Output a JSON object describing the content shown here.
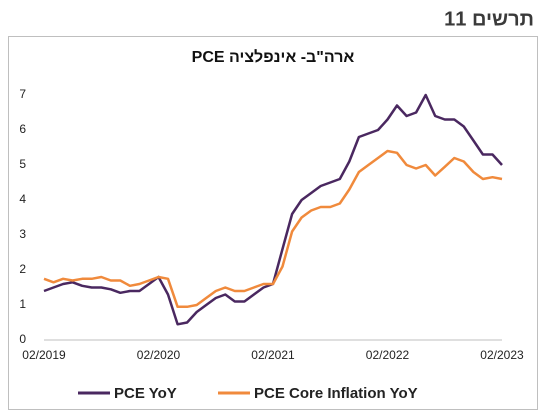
{
  "header": {
    "label": "תרשים 11"
  },
  "chart_data": {
    "type": "line",
    "title": "ארה\"ב- אינפלציה PCE",
    "categories": [
      "02/2019",
      null,
      null,
      null,
      null,
      null,
      null,
      null,
      null,
      null,
      null,
      null,
      "02/2020",
      null,
      null,
      null,
      null,
      null,
      null,
      null,
      null,
      null,
      null,
      null,
      "02/2021",
      null,
      null,
      null,
      null,
      null,
      null,
      null,
      null,
      null,
      null,
      null,
      "02/2022",
      null,
      null,
      null,
      null,
      null,
      null,
      null,
      null,
      null,
      null,
      null,
      "02/2023"
    ],
    "series": [
      {
        "name": "PCE YoY",
        "color": "#4a2860",
        "values": [
          1.4,
          1.5,
          1.6,
          1.65,
          1.55,
          1.5,
          1.5,
          1.45,
          1.35,
          1.4,
          1.4,
          1.6,
          1.8,
          1.3,
          0.45,
          0.5,
          0.8,
          1.0,
          1.2,
          1.3,
          1.1,
          1.1,
          1.3,
          1.5,
          1.6,
          2.6,
          3.6,
          4.0,
          4.2,
          4.4,
          4.5,
          4.6,
          5.1,
          5.8,
          5.9,
          6.0,
          6.3,
          6.7,
          6.4,
          6.5,
          7.0,
          6.4,
          6.3,
          6.3,
          6.1,
          5.7,
          5.3,
          5.3,
          5.0
        ]
      },
      {
        "name": "PCE Core Inflation YoY",
        "color": "#f08a3c",
        "values": [
          1.75,
          1.65,
          1.75,
          1.7,
          1.75,
          1.75,
          1.8,
          1.7,
          1.7,
          1.55,
          1.6,
          1.7,
          1.8,
          1.75,
          0.95,
          0.95,
          1.0,
          1.2,
          1.4,
          1.5,
          1.4,
          1.4,
          1.5,
          1.6,
          1.6,
          2.1,
          3.1,
          3.5,
          3.7,
          3.8,
          3.8,
          3.9,
          4.3,
          4.8,
          5.0,
          5.2,
          5.4,
          5.35,
          5.0,
          4.9,
          5.0,
          4.7,
          4.95,
          5.2,
          5.1,
          4.8,
          4.6,
          4.65,
          4.6
        ]
      }
    ],
    "ylim": [
      0,
      7
    ],
    "yticks": [
      0,
      1,
      2,
      3,
      4,
      5,
      6,
      7
    ],
    "grid": false
  }
}
